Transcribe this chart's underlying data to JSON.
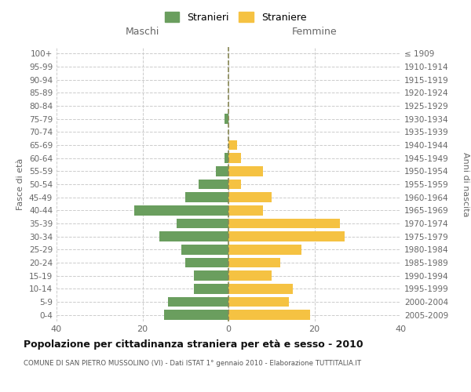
{
  "age_groups": [
    "0-4",
    "5-9",
    "10-14",
    "15-19",
    "20-24",
    "25-29",
    "30-34",
    "35-39",
    "40-44",
    "45-49",
    "50-54",
    "55-59",
    "60-64",
    "65-69",
    "70-74",
    "75-79",
    "80-84",
    "85-89",
    "90-94",
    "95-99",
    "100+"
  ],
  "birth_years": [
    "2005-2009",
    "2000-2004",
    "1995-1999",
    "1990-1994",
    "1985-1989",
    "1980-1984",
    "1975-1979",
    "1970-1974",
    "1965-1969",
    "1960-1964",
    "1955-1959",
    "1950-1954",
    "1945-1949",
    "1940-1944",
    "1935-1939",
    "1930-1934",
    "1925-1929",
    "1920-1924",
    "1915-1919",
    "1910-1914",
    "≤ 1909"
  ],
  "maschi": [
    15,
    14,
    8,
    8,
    10,
    11,
    16,
    12,
    22,
    10,
    7,
    3,
    1,
    0,
    0,
    1,
    0,
    0,
    0,
    0,
    0
  ],
  "femmine": [
    19,
    14,
    15,
    10,
    12,
    17,
    27,
    26,
    8,
    10,
    3,
    8,
    3,
    2,
    0,
    0,
    0,
    0,
    0,
    0,
    0
  ],
  "maschi_color": "#6a9e5e",
  "femmine_color": "#f5c242",
  "background_color": "#ffffff",
  "grid_color": "#cccccc",
  "title": "Popolazione per cittadinanza straniera per età e sesso - 2010",
  "subtitle": "COMUNE DI SAN PIETRO MUSSOLINO (VI) - Dati ISTAT 1° gennaio 2010 - Elaborazione TUTTITALIA.IT",
  "ylabel_left": "Fasce di età",
  "ylabel_right": "Anni di nascita",
  "xlabel_maschi": "Maschi",
  "xlabel_femmine": "Femmine",
  "legend_maschi": "Stranieri",
  "legend_femmine": "Straniere",
  "xlim": 40,
  "dashed_line_color": "#888855"
}
